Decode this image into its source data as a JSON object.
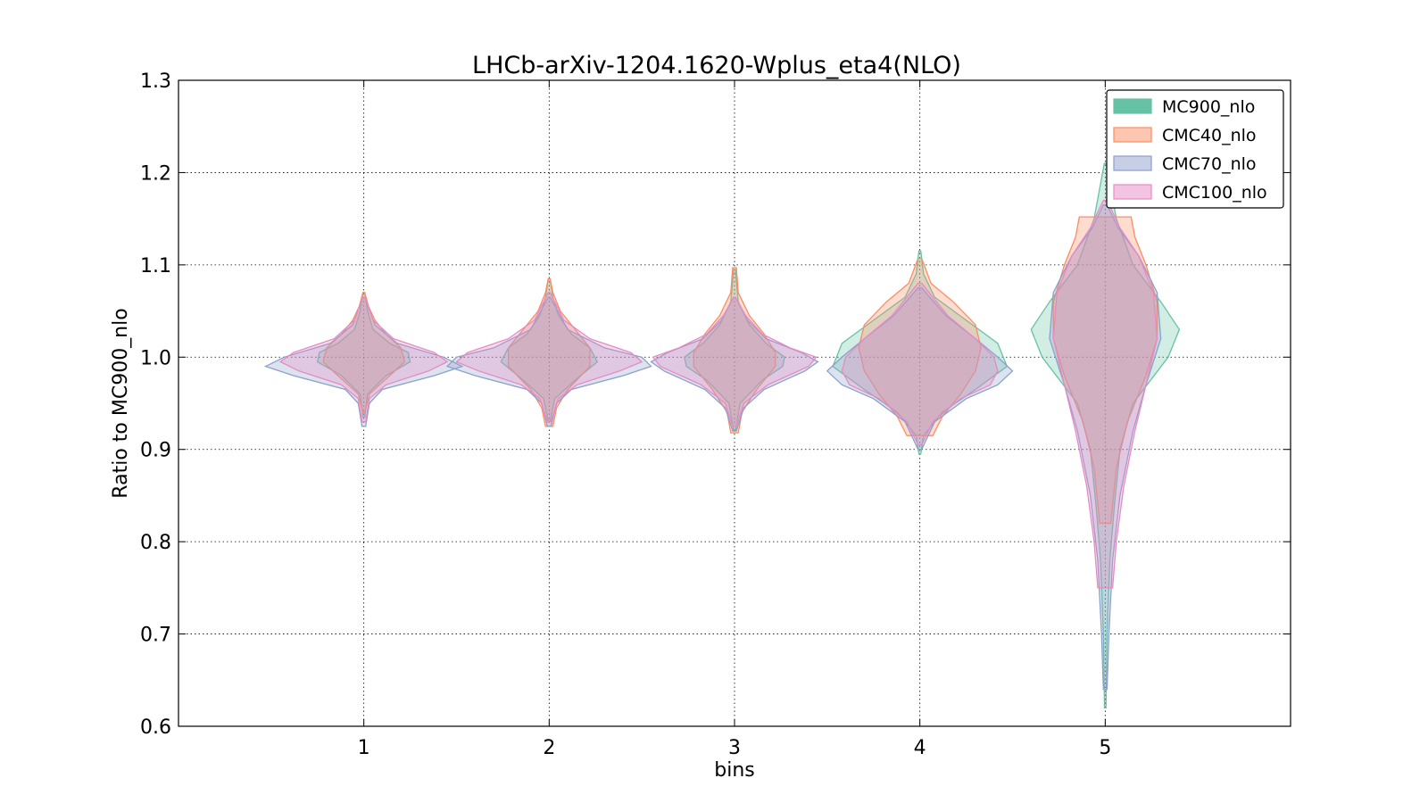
{
  "chart_data": {
    "type": "violin",
    "title": "LHCb-arXiv-1204.1620-Wplus_eta4(NLO)",
    "xlabel": "bins",
    "ylabel": "Ratio to MC900_nlo",
    "categories": [
      1,
      2,
      3,
      4,
      5
    ],
    "x_ticks": [
      "1",
      "2",
      "3",
      "4",
      "5"
    ],
    "xlim": [
      0,
      6
    ],
    "ylim": [
      0.6,
      1.3
    ],
    "y_ticks": [
      "0.6",
      "0.7",
      "0.8",
      "0.9",
      "1.0",
      "1.1",
      "1.2",
      "1.3"
    ],
    "grid": true,
    "legend_position": "top-right",
    "series": [
      {
        "name": "MC900_nlo",
        "color": "#66c2a5",
        "violins": [
          {
            "bin": 1,
            "min": 0.935,
            "max": 1.07,
            "profile": [
              [
                0.935,
                0.005
              ],
              [
                0.96,
                0.02
              ],
              [
                0.98,
                0.12
              ],
              [
                0.995,
                0.25
              ],
              [
                1.005,
                0.24
              ],
              [
                1.015,
                0.14
              ],
              [
                1.03,
                0.05
              ],
              [
                1.05,
                0.02
              ],
              [
                1.07,
                0.005
              ]
            ]
          },
          {
            "bin": 2,
            "min": 0.93,
            "max": 1.085,
            "profile": [
              [
                0.93,
                0.005
              ],
              [
                0.955,
                0.03
              ],
              [
                0.975,
                0.14
              ],
              [
                0.995,
                0.26
              ],
              [
                1.01,
                0.22
              ],
              [
                1.025,
                0.12
              ],
              [
                1.045,
                0.05
              ],
              [
                1.065,
                0.02
              ],
              [
                1.085,
                0.005
              ]
            ]
          },
          {
            "bin": 3,
            "min": 0.92,
            "max": 1.095,
            "profile": [
              [
                0.92,
                0.005
              ],
              [
                0.95,
                0.03
              ],
              [
                0.975,
                0.15
              ],
              [
                0.99,
                0.26
              ],
              [
                1.0,
                0.27
              ],
              [
                1.015,
                0.17
              ],
              [
                1.035,
                0.08
              ],
              [
                1.06,
                0.02
              ],
              [
                1.095,
                0.005
              ]
            ]
          },
          {
            "bin": 4,
            "min": 0.895,
            "max": 1.115,
            "profile": [
              [
                0.895,
                0.005
              ],
              [
                0.915,
                0.02
              ],
              [
                0.94,
                0.12
              ],
              [
                0.965,
                0.3
              ],
              [
                0.99,
                0.47
              ],
              [
                1.015,
                0.42
              ],
              [
                1.04,
                0.25
              ],
              [
                1.065,
                0.08
              ],
              [
                1.09,
                0.02
              ],
              [
                1.115,
                0.005
              ]
            ]
          },
          {
            "bin": 5,
            "min": 0.62,
            "max": 1.21,
            "profile": [
              [
                0.62,
                0.004
              ],
              [
                0.7,
                0.01
              ],
              [
                0.78,
                0.025
              ],
              [
                0.84,
                0.05
              ],
              [
                0.9,
                0.08
              ],
              [
                0.95,
                0.15
              ],
              [
                1.0,
                0.34
              ],
              [
                1.03,
                0.4
              ],
              [
                1.06,
                0.3
              ],
              [
                1.1,
                0.15
              ],
              [
                1.15,
                0.06
              ],
              [
                1.21,
                0.005
              ]
            ]
          }
        ]
      },
      {
        "name": "CMC40_nlo",
        "color": "#fc8d62",
        "violins": [
          {
            "bin": 1,
            "min": 0.94,
            "max": 1.07,
            "profile": [
              [
                0.94,
                0.005
              ],
              [
                0.96,
                0.03
              ],
              [
                0.98,
                0.14
              ],
              [
                0.995,
                0.22
              ],
              [
                1.01,
                0.2
              ],
              [
                1.025,
                0.12
              ],
              [
                1.04,
                0.06
              ],
              [
                1.055,
                0.025
              ],
              [
                1.07,
                0.005
              ]
            ]
          },
          {
            "bin": 2,
            "min": 0.925,
            "max": 1.085,
            "profile": [
              [
                0.925,
                0.02
              ],
              [
                0.945,
                0.04
              ],
              [
                0.965,
                0.1
              ],
              [
                0.99,
                0.22
              ],
              [
                1.01,
                0.22
              ],
              [
                1.03,
                0.14
              ],
              [
                1.05,
                0.06
              ],
              [
                1.07,
                0.02
              ],
              [
                1.085,
                0.005
              ]
            ]
          },
          {
            "bin": 3,
            "min": 0.918,
            "max": 1.097,
            "profile": [
              [
                0.918,
                0.02
              ],
              [
                0.94,
                0.04
              ],
              [
                0.965,
                0.12
              ],
              [
                0.99,
                0.22
              ],
              [
                1.005,
                0.22
              ],
              [
                1.025,
                0.16
              ],
              [
                1.045,
                0.08
              ],
              [
                1.07,
                0.02
              ],
              [
                1.097,
                0.01
              ]
            ]
          },
          {
            "bin": 4,
            "min": 0.915,
            "max": 1.107,
            "profile": [
              [
                0.915,
                0.07
              ],
              [
                0.935,
                0.12
              ],
              [
                0.96,
                0.22
              ],
              [
                0.985,
                0.3
              ],
              [
                1.01,
                0.33
              ],
              [
                1.035,
                0.3
              ],
              [
                1.06,
                0.18
              ],
              [
                1.08,
                0.06
              ],
              [
                1.107,
                0.01
              ]
            ]
          },
          {
            "bin": 5,
            "min": 0.82,
            "max": 1.152,
            "profile": [
              [
                0.82,
                0.03
              ],
              [
                0.88,
                0.06
              ],
              [
                0.93,
                0.12
              ],
              [
                0.98,
                0.22
              ],
              [
                1.02,
                0.28
              ],
              [
                1.06,
                0.28
              ],
              [
                1.1,
                0.22
              ],
              [
                1.13,
                0.16
              ],
              [
                1.152,
                0.14
              ]
            ]
          }
        ]
      },
      {
        "name": "CMC70_nlo",
        "color": "#8da0cb",
        "violins": [
          {
            "bin": 1,
            "min": 0.925,
            "max": 1.065,
            "profile": [
              [
                0.925,
                0.01
              ],
              [
                0.95,
                0.03
              ],
              [
                0.965,
                0.1
              ],
              [
                0.98,
                0.38
              ],
              [
                0.99,
                0.53
              ],
              [
                1.0,
                0.43
              ],
              [
                1.015,
                0.18
              ],
              [
                1.035,
                0.06
              ],
              [
                1.065,
                0.005
              ]
            ]
          },
          {
            "bin": 2,
            "min": 0.925,
            "max": 1.065,
            "profile": [
              [
                0.925,
                0.01
              ],
              [
                0.95,
                0.04
              ],
              [
                0.965,
                0.12
              ],
              [
                0.98,
                0.4
              ],
              [
                0.99,
                0.55
              ],
              [
                1.0,
                0.5
              ],
              [
                1.01,
                0.3
              ],
              [
                1.03,
                0.1
              ],
              [
                1.065,
                0.005
              ]
            ]
          },
          {
            "bin": 3,
            "min": 0.92,
            "max": 1.065,
            "profile": [
              [
                0.92,
                0.01
              ],
              [
                0.945,
                0.05
              ],
              [
                0.965,
                0.16
              ],
              [
                0.985,
                0.38
              ],
              [
                0.995,
                0.45
              ],
              [
                1.005,
                0.36
              ],
              [
                1.02,
                0.17
              ],
              [
                1.04,
                0.07
              ],
              [
                1.065,
                0.005
              ]
            ]
          },
          {
            "bin": 4,
            "min": 0.9,
            "max": 1.075,
            "profile": [
              [
                0.9,
                0.01
              ],
              [
                0.93,
                0.08
              ],
              [
                0.955,
                0.25
              ],
              [
                0.97,
                0.42
              ],
              [
                0.985,
                0.5
              ],
              [
                1.0,
                0.42
              ],
              [
                1.02,
                0.3
              ],
              [
                1.045,
                0.14
              ],
              [
                1.075,
                0.01
              ]
            ]
          },
          {
            "bin": 5,
            "min": 0.64,
            "max": 1.165,
            "profile": [
              [
                0.64,
                0.01
              ],
              [
                0.7,
                0.02
              ],
              [
                0.78,
                0.04
              ],
              [
                0.85,
                0.08
              ],
              [
                0.92,
                0.15
              ],
              [
                0.97,
                0.22
              ],
              [
                1.02,
                0.3
              ],
              [
                1.07,
                0.28
              ],
              [
                1.11,
                0.18
              ],
              [
                1.14,
                0.07
              ],
              [
                1.165,
                0.01
              ]
            ]
          }
        ]
      },
      {
        "name": "CMC100_nlo",
        "color": "#e78ac3",
        "violins": [
          {
            "bin": 1,
            "min": 0.93,
            "max": 1.065,
            "profile": [
              [
                0.93,
                0.01
              ],
              [
                0.955,
                0.03
              ],
              [
                0.97,
                0.12
              ],
              [
                0.985,
                0.35
              ],
              [
                0.995,
                0.45
              ],
              [
                1.005,
                0.38
              ],
              [
                1.02,
                0.16
              ],
              [
                1.04,
                0.05
              ],
              [
                1.065,
                0.005
              ]
            ]
          },
          {
            "bin": 2,
            "min": 0.93,
            "max": 1.07,
            "profile": [
              [
                0.93,
                0.01
              ],
              [
                0.955,
                0.05
              ],
              [
                0.97,
                0.15
              ],
              [
                0.985,
                0.38
              ],
              [
                0.995,
                0.5
              ],
              [
                1.005,
                0.44
              ],
              [
                1.02,
                0.22
              ],
              [
                1.04,
                0.08
              ],
              [
                1.07,
                0.005
              ]
            ]
          },
          {
            "bin": 3,
            "min": 0.925,
            "max": 1.065,
            "profile": [
              [
                0.925,
                0.01
              ],
              [
                0.95,
                0.05
              ],
              [
                0.97,
                0.18
              ],
              [
                0.99,
                0.4
              ],
              [
                1.0,
                0.44
              ],
              [
                1.01,
                0.3
              ],
              [
                1.025,
                0.15
              ],
              [
                1.045,
                0.06
              ],
              [
                1.065,
                0.005
              ]
            ]
          },
          {
            "bin": 4,
            "min": 0.905,
            "max": 1.08,
            "profile": [
              [
                0.905,
                0.01
              ],
              [
                0.93,
                0.07
              ],
              [
                0.955,
                0.22
              ],
              [
                0.97,
                0.38
              ],
              [
                0.985,
                0.42
              ],
              [
                1.0,
                0.4
              ],
              [
                1.02,
                0.3
              ],
              [
                1.045,
                0.15
              ],
              [
                1.08,
                0.01
              ]
            ]
          },
          {
            "bin": 5,
            "min": 0.75,
            "max": 1.17,
            "profile": [
              [
                0.75,
                0.04
              ],
              [
                0.8,
                0.06
              ],
              [
                0.86,
                0.1
              ],
              [
                0.92,
                0.16
              ],
              [
                0.97,
                0.22
              ],
              [
                1.02,
                0.28
              ],
              [
                1.07,
                0.26
              ],
              [
                1.11,
                0.18
              ],
              [
                1.14,
                0.08
              ],
              [
                1.17,
                0.01
              ]
            ]
          }
        ]
      }
    ]
  }
}
